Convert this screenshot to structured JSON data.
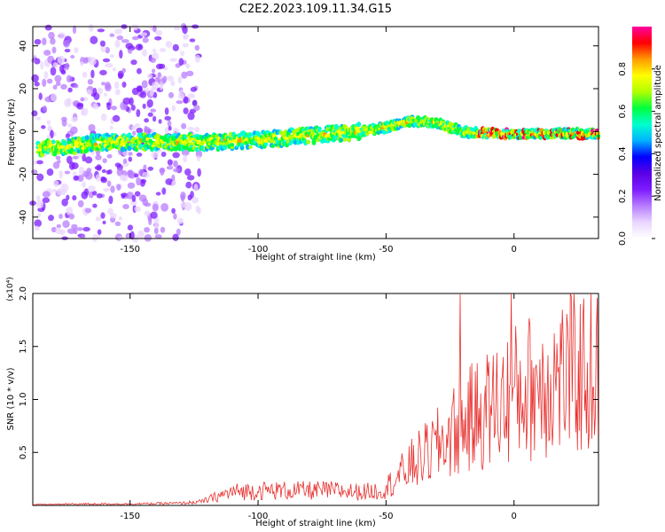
{
  "title": "C2E2.2023.109.11.34.G15",
  "colors": {
    "snr_line": "#e8312f",
    "background": "#ffffff",
    "axes": "#000000",
    "colormap": [
      "#ffffff",
      "#e9d6ff",
      "#b87cff",
      "#7d1cff",
      "#5a00e6",
      "#0000ff",
      "#00b3ff",
      "#00ffd0",
      "#00ff40",
      "#b0ff00",
      "#ffff00",
      "#ff9a00",
      "#ff0000",
      "#ff00a0"
    ]
  },
  "chart_data": [
    {
      "type": "heatmap",
      "title": "C2E2.2023.109.11.34.G15",
      "xlabel": "Height of straight line (km)",
      "ylabel": "Frequency (Hz)",
      "xlim": [
        -188,
        33
      ],
      "ylim": [
        -50,
        49
      ],
      "x_ticks": [
        -150,
        -100,
        -50,
        0
      ],
      "y_ticks": [
        -40,
        -20,
        0,
        20,
        40
      ],
      "colorbar": {
        "label": "Normalized spectral amplitude",
        "range": [
          0.0,
          1.0
        ],
        "ticks": [
          "0.0",
          "0.2",
          "0.4",
          "0.6",
          "0.8"
        ]
      },
      "ridge": {
        "x": [
          -188,
          -175,
          -160,
          -140,
          -120,
          -100,
          -80,
          -60,
          -50,
          -40,
          -30,
          -20,
          -10,
          0,
          10,
          20,
          33
        ],
        "frequency": [
          -8,
          -7,
          -5,
          -5,
          -5,
          -4,
          -2,
          0,
          2,
          5,
          4,
          0,
          -1,
          -1,
          -1,
          -1,
          -1
        ]
      }
    },
    {
      "type": "line",
      "xlabel": "Height of straight line (km)",
      "ylabel": "SNR (10 * v/v)",
      "y_scale_label": "(x10⁴)",
      "xlim": [
        -188,
        33
      ],
      "ylim": [
        0,
        2.0
      ],
      "x_ticks": [
        -150,
        -100,
        -50,
        0
      ],
      "y_ticks": [
        0.5,
        1.0,
        1.5,
        2.0
      ],
      "series": [
        {
          "envelope_x": [
            -188,
            -170,
            -150,
            -130,
            -122,
            -116,
            -110,
            -100,
            -90,
            -80,
            -70,
            -60,
            -52,
            -48,
            -40,
            -30,
            -20,
            -10,
            0,
            10,
            20,
            33
          ],
          "envelope_y": [
            0.01,
            0.02,
            0.02,
            0.03,
            0.05,
            0.12,
            0.18,
            0.2,
            0.2,
            0.2,
            0.2,
            0.18,
            0.2,
            0.3,
            0.55,
            0.8,
            1.1,
            1.3,
            1.5,
            1.65,
            1.75,
            1.82
          ],
          "peaks": [
            {
              "x": -21,
              "y": 2.0
            },
            {
              "x": -1,
              "y": 2.0
            }
          ]
        }
      ]
    }
  ]
}
